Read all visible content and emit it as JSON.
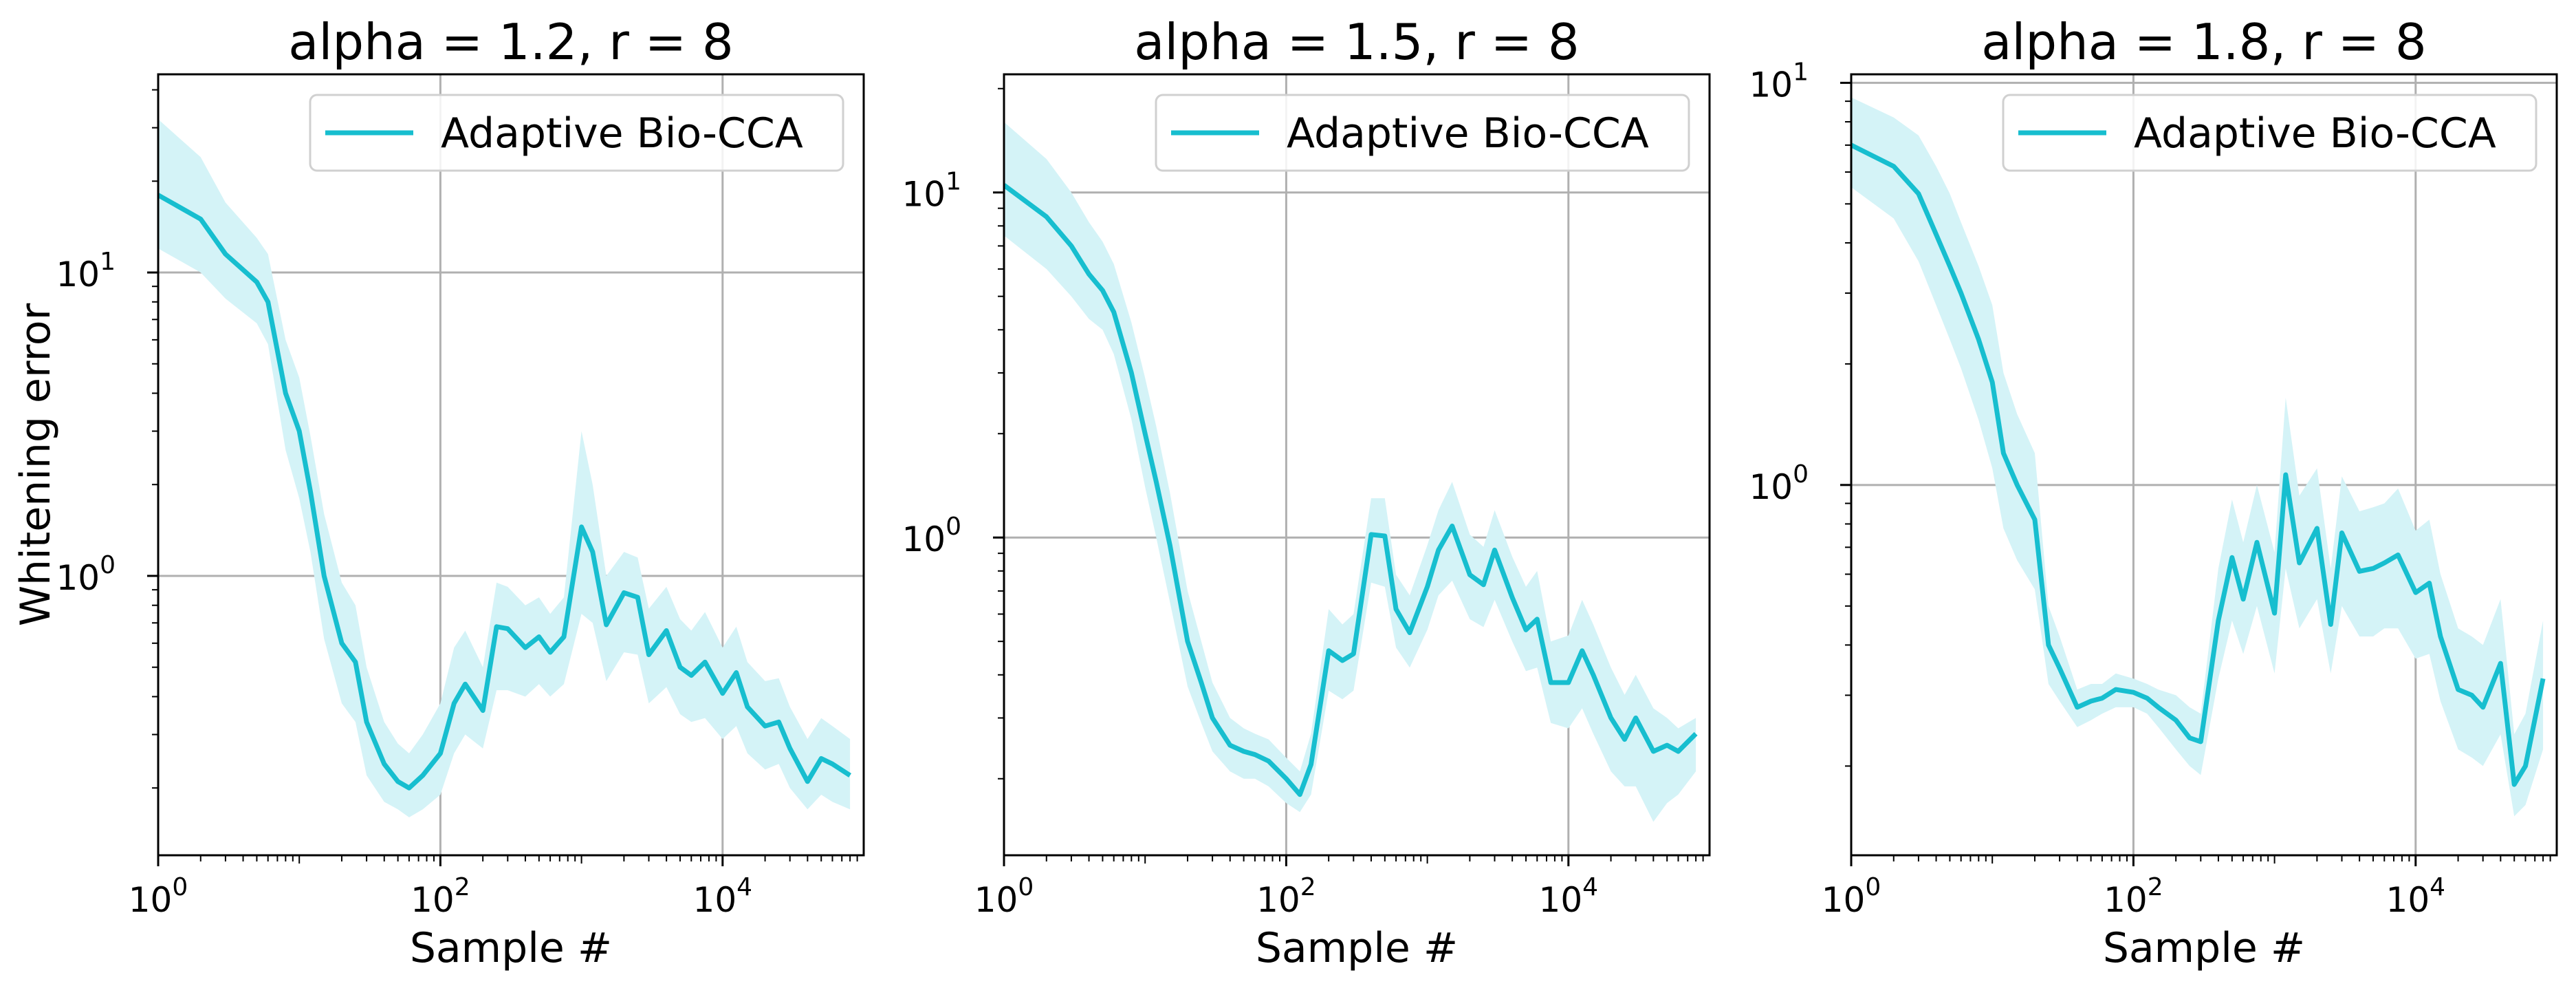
{
  "chart_data": [
    {
      "type": "line",
      "title": "alpha = 1.2, r = 8",
      "xlabel": "Sample #",
      "ylabel": "Whitening error",
      "xscale": "log",
      "yscale": "log",
      "xlim": [
        1,
        100000
      ],
      "ylim": [
        0.12,
        45
      ],
      "x_ticks": [
        "1",
        "100",
        "10000"
      ],
      "y_ticks": [
        "1",
        "10"
      ],
      "grid": true,
      "legend": "top-right",
      "series": [
        {
          "name": "Adaptive Bio-CCA",
          "color": "#17becf",
          "band_color": "#d4f3f7",
          "x": [
            1,
            2,
            3,
            5,
            6,
            8,
            10,
            12,
            15,
            20,
            25,
            30,
            40,
            50,
            60,
            75,
            100,
            125,
            150,
            200,
            250,
            300,
            400,
            500,
            600,
            750,
            1000,
            1200,
            1500,
            2000,
            2500,
            3000,
            4000,
            5000,
            6000,
            7500,
            10000,
            12500,
            15000,
            20000,
            25000,
            30000,
            40000,
            50000,
            60000,
            80000
          ],
          "y": [
            18,
            15,
            11.5,
            9.3,
            8.0,
            4.0,
            3.0,
            1.9,
            1.0,
            0.6,
            0.52,
            0.33,
            0.24,
            0.21,
            0.2,
            0.22,
            0.26,
            0.38,
            0.44,
            0.36,
            0.68,
            0.67,
            0.58,
            0.63,
            0.56,
            0.63,
            1.45,
            1.2,
            0.69,
            0.88,
            0.85,
            0.55,
            0.66,
            0.5,
            0.47,
            0.52,
            0.41,
            0.48,
            0.37,
            0.32,
            0.33,
            0.27,
            0.21,
            0.25,
            0.24,
            0.22
          ],
          "lower": [
            12,
            10,
            8.2,
            6.8,
            5.8,
            2.6,
            1.8,
            1.2,
            0.62,
            0.38,
            0.33,
            0.22,
            0.18,
            0.17,
            0.16,
            0.17,
            0.19,
            0.26,
            0.3,
            0.27,
            0.42,
            0.42,
            0.4,
            0.44,
            0.4,
            0.44,
            0.75,
            0.7,
            0.45,
            0.56,
            0.55,
            0.38,
            0.43,
            0.35,
            0.33,
            0.34,
            0.29,
            0.32,
            0.26,
            0.23,
            0.24,
            0.2,
            0.17,
            0.19,
            0.18,
            0.17
          ],
          "upper": [
            32,
            24,
            17,
            13,
            11.5,
            6.0,
            4.5,
            2.9,
            1.6,
            0.95,
            0.8,
            0.5,
            0.33,
            0.28,
            0.26,
            0.3,
            0.38,
            0.58,
            0.66,
            0.5,
            0.95,
            0.92,
            0.8,
            0.85,
            0.75,
            0.85,
            3.0,
            2.0,
            1.0,
            1.2,
            1.15,
            0.78,
            0.92,
            0.72,
            0.66,
            0.76,
            0.58,
            0.68,
            0.52,
            0.45,
            0.46,
            0.37,
            0.29,
            0.34,
            0.32,
            0.29
          ]
        }
      ]
    },
    {
      "type": "line",
      "title": "alpha = 1.5, r = 8",
      "xlabel": "Sample #",
      "ylabel": "",
      "xscale": "log",
      "yscale": "log",
      "xlim": [
        1,
        100000
      ],
      "ylim": [
        0.12,
        22
      ],
      "x_ticks": [
        "1",
        "100",
        "10000"
      ],
      "y_ticks": [
        "1",
        "10"
      ],
      "grid": true,
      "legend": "top-right",
      "series": [
        {
          "name": "Adaptive Bio-CCA",
          "color": "#17becf",
          "band_color": "#d4f3f7",
          "x": [
            1,
            2,
            3,
            4,
            5,
            6,
            8,
            10,
            12,
            15,
            20,
            25,
            30,
            40,
            50,
            60,
            75,
            100,
            125,
            150,
            200,
            250,
            300,
            400,
            500,
            600,
            750,
            1000,
            1200,
            1500,
            2000,
            2500,
            3000,
            4000,
            5000,
            6000,
            7500,
            10000,
            12500,
            15000,
            20000,
            25000,
            30000,
            40000,
            50000,
            60000,
            80000
          ],
          "y": [
            10.5,
            8.5,
            7.0,
            5.8,
            5.2,
            4.5,
            3.0,
            2.0,
            1.45,
            0.95,
            0.5,
            0.38,
            0.3,
            0.25,
            0.24,
            0.235,
            0.225,
            0.2,
            0.18,
            0.22,
            0.47,
            0.44,
            0.46,
            1.02,
            1.01,
            0.62,
            0.53,
            0.72,
            0.92,
            1.08,
            0.78,
            0.73,
            0.92,
            0.67,
            0.54,
            0.58,
            0.38,
            0.38,
            0.47,
            0.4,
            0.3,
            0.26,
            0.3,
            0.24,
            0.25,
            0.24,
            0.27
          ],
          "lower": [
            7.5,
            6.0,
            5.0,
            4.3,
            4.0,
            3.4,
            2.2,
            1.4,
            1.0,
            0.65,
            0.37,
            0.29,
            0.24,
            0.21,
            0.2,
            0.2,
            0.19,
            0.17,
            0.16,
            0.18,
            0.36,
            0.34,
            0.36,
            0.74,
            0.72,
            0.48,
            0.42,
            0.54,
            0.68,
            0.75,
            0.58,
            0.55,
            0.66,
            0.5,
            0.41,
            0.42,
            0.29,
            0.28,
            0.32,
            0.27,
            0.21,
            0.19,
            0.19,
            0.15,
            0.17,
            0.18,
            0.21
          ],
          "upper": [
            16,
            12.5,
            10,
            8.2,
            7.2,
            6.2,
            4.2,
            2.9,
            2.1,
            1.35,
            0.7,
            0.5,
            0.38,
            0.3,
            0.28,
            0.27,
            0.26,
            0.23,
            0.21,
            0.27,
            0.62,
            0.56,
            0.6,
            1.3,
            1.3,
            0.78,
            0.68,
            0.95,
            1.2,
            1.45,
            1.02,
            0.94,
            1.2,
            0.88,
            0.72,
            0.8,
            0.5,
            0.52,
            0.66,
            0.56,
            0.42,
            0.35,
            0.4,
            0.32,
            0.3,
            0.28,
            0.3
          ]
        }
      ]
    },
    {
      "type": "line",
      "title": "alpha = 1.8, r = 8",
      "xlabel": "Sample #",
      "ylabel": "",
      "xscale": "log",
      "yscale": "log",
      "xlim": [
        1,
        100000
      ],
      "ylim": [
        0.12,
        10.5
      ],
      "x_ticks": [
        "1",
        "100",
        "10000"
      ],
      "y_ticks": [
        "1",
        "10"
      ],
      "grid": true,
      "legend": "top-right",
      "series": [
        {
          "name": "Adaptive Bio-CCA",
          "color": "#17becf",
          "band_color": "#d4f3f7",
          "x": [
            1,
            2,
            3,
            4,
            5,
            6,
            8,
            10,
            12,
            15,
            20,
            25,
            30,
            40,
            50,
            60,
            75,
            100,
            125,
            150,
            200,
            250,
            300,
            400,
            500,
            600,
            750,
            1000,
            1200,
            1500,
            2000,
            2500,
            3000,
            4000,
            5000,
            6000,
            7500,
            10000,
            12500,
            15000,
            20000,
            25000,
            30000,
            40000,
            50000,
            60000,
            80000
          ],
          "y": [
            7.0,
            6.2,
            5.3,
            4.2,
            3.5,
            3.0,
            2.3,
            1.8,
            1.2,
            1.0,
            0.82,
            0.4,
            0.35,
            0.28,
            0.29,
            0.295,
            0.31,
            0.305,
            0.295,
            0.28,
            0.26,
            0.235,
            0.23,
            0.46,
            0.66,
            0.52,
            0.72,
            0.48,
            1.06,
            0.64,
            0.78,
            0.45,
            0.76,
            0.61,
            0.62,
            0.64,
            0.67,
            0.54,
            0.57,
            0.42,
            0.31,
            0.3,
            0.28,
            0.36,
            0.18,
            0.2,
            0.33
          ],
          "lower": [
            5.5,
            4.6,
            3.6,
            2.8,
            2.3,
            1.95,
            1.45,
            1.1,
            0.78,
            0.65,
            0.55,
            0.32,
            0.29,
            0.25,
            0.26,
            0.27,
            0.28,
            0.28,
            0.27,
            0.25,
            0.22,
            0.2,
            0.19,
            0.33,
            0.46,
            0.38,
            0.5,
            0.34,
            0.62,
            0.44,
            0.52,
            0.34,
            0.5,
            0.42,
            0.42,
            0.44,
            0.44,
            0.37,
            0.38,
            0.29,
            0.22,
            0.21,
            0.2,
            0.24,
            0.15,
            0.16,
            0.22
          ],
          "upper": [
            9.2,
            8.2,
            7.4,
            6.2,
            5.3,
            4.5,
            3.5,
            2.8,
            1.9,
            1.5,
            1.2,
            0.5,
            0.42,
            0.31,
            0.32,
            0.32,
            0.34,
            0.33,
            0.32,
            0.31,
            0.3,
            0.28,
            0.27,
            0.62,
            0.92,
            0.72,
            1.0,
            0.68,
            1.65,
            0.94,
            1.1,
            0.62,
            1.05,
            0.86,
            0.88,
            0.9,
            0.98,
            0.77,
            0.82,
            0.6,
            0.44,
            0.42,
            0.4,
            0.52,
            0.24,
            0.27,
            0.46
          ]
        }
      ]
    }
  ]
}
